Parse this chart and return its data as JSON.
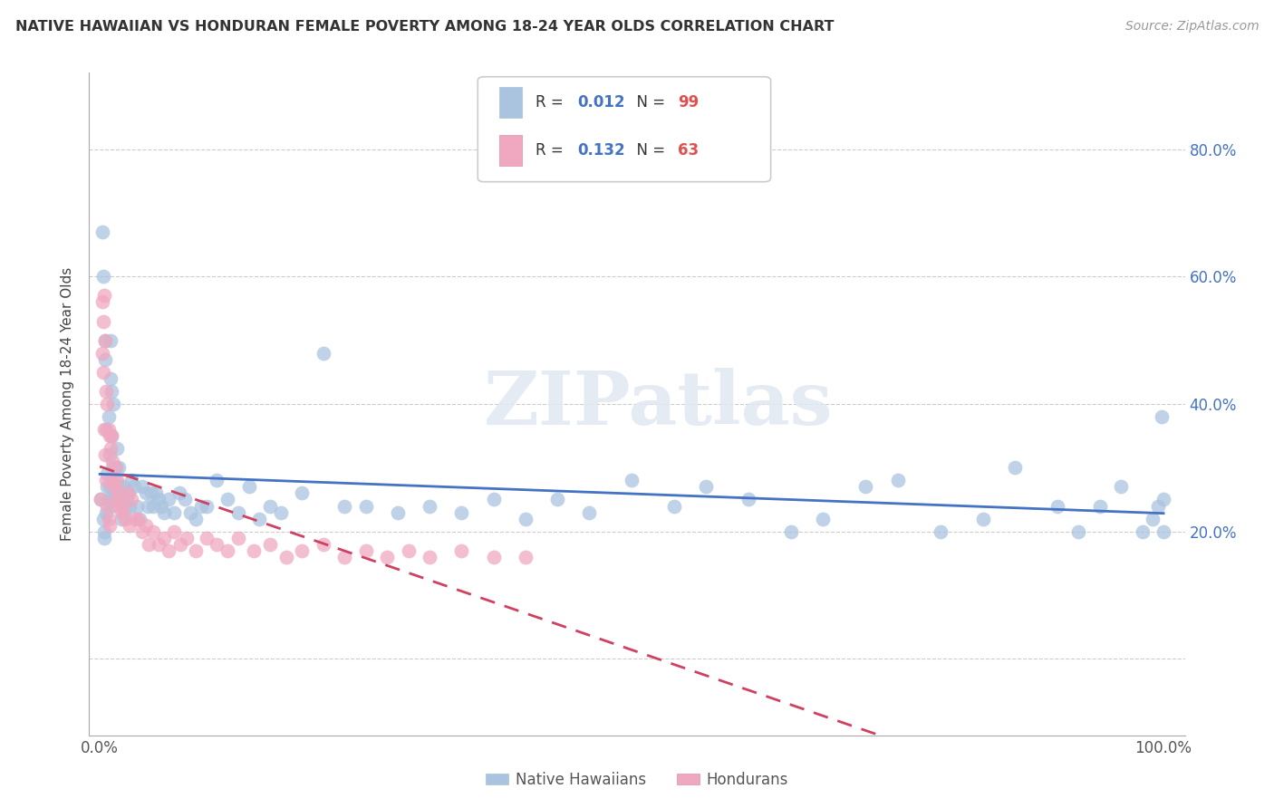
{
  "title": "NATIVE HAWAIIAN VS HONDURAN FEMALE POVERTY AMONG 18-24 YEAR OLDS CORRELATION CHART",
  "source": "Source: ZipAtlas.com",
  "ylabel": "Female Poverty Among 18-24 Year Olds",
  "xlim": [
    -0.01,
    1.02
  ],
  "ylim": [
    -0.12,
    0.92
  ],
  "ytick_positions": [
    0.0,
    0.2,
    0.4,
    0.6,
    0.8
  ],
  "ytick_labels": [
    "",
    "20.0%",
    "40.0%",
    "60.0%",
    "80.0%"
  ],
  "xtick_positions": [
    0.0,
    0.2,
    0.4,
    0.6,
    0.8,
    1.0
  ],
  "xtick_labels": [
    "0.0%",
    "",
    "",
    "",
    "",
    "100.0%"
  ],
  "grid_color": "#cccccc",
  "background_color": "#ffffff",
  "hawaiian_color": "#aac4e0",
  "honduran_color": "#f0a8c0",
  "trend_hawaiian_color": "#4472c4",
  "trend_honduran_color": "#d04060",
  "legend_r1_val": "0.012",
  "legend_n1_val": "99",
  "legend_r2_val": "0.132",
  "legend_n2_val": "63",
  "legend_label1": "Native Hawaiians",
  "legend_label2": "Hondurans",
  "watermark": "ZIPatlas",
  "val_color": "#4472c4",
  "n_color": "#e05050",
  "hawaiian_x": [
    0.001,
    0.002,
    0.003,
    0.003,
    0.004,
    0.004,
    0.005,
    0.005,
    0.006,
    0.006,
    0.007,
    0.007,
    0.008,
    0.008,
    0.009,
    0.009,
    0.01,
    0.01,
    0.01,
    0.011,
    0.011,
    0.012,
    0.012,
    0.013,
    0.013,
    0.014,
    0.015,
    0.015,
    0.016,
    0.017,
    0.018,
    0.019,
    0.02,
    0.021,
    0.022,
    0.023,
    0.025,
    0.027,
    0.028,
    0.03,
    0.032,
    0.035,
    0.037,
    0.04,
    0.043,
    0.045,
    0.048,
    0.05,
    0.053,
    0.055,
    0.058,
    0.06,
    0.065,
    0.07,
    0.075,
    0.08,
    0.085,
    0.09,
    0.095,
    0.1,
    0.11,
    0.12,
    0.13,
    0.14,
    0.15,
    0.16,
    0.17,
    0.19,
    0.21,
    0.23,
    0.25,
    0.28,
    0.31,
    0.34,
    0.37,
    0.4,
    0.43,
    0.46,
    0.5,
    0.54,
    0.57,
    0.61,
    0.65,
    0.68,
    0.72,
    0.75,
    0.79,
    0.83,
    0.86,
    0.9,
    0.92,
    0.94,
    0.96,
    0.98,
    0.99,
    0.995,
    0.998,
    1.0,
    1.0
  ],
  "hawaiian_y": [
    0.25,
    0.67,
    0.6,
    0.22,
    0.2,
    0.19,
    0.5,
    0.47,
    0.36,
    0.23,
    0.29,
    0.27,
    0.38,
    0.25,
    0.32,
    0.27,
    0.5,
    0.44,
    0.24,
    0.42,
    0.35,
    0.3,
    0.25,
    0.4,
    0.25,
    0.28,
    0.3,
    0.26,
    0.33,
    0.25,
    0.3,
    0.27,
    0.22,
    0.25,
    0.27,
    0.23,
    0.25,
    0.26,
    0.24,
    0.28,
    0.27,
    0.24,
    0.22,
    0.27,
    0.26,
    0.24,
    0.26,
    0.24,
    0.26,
    0.25,
    0.24,
    0.23,
    0.25,
    0.23,
    0.26,
    0.25,
    0.23,
    0.22,
    0.24,
    0.24,
    0.28,
    0.25,
    0.23,
    0.27,
    0.22,
    0.24,
    0.23,
    0.26,
    0.48,
    0.24,
    0.24,
    0.23,
    0.24,
    0.23,
    0.25,
    0.22,
    0.25,
    0.23,
    0.28,
    0.24,
    0.27,
    0.25,
    0.2,
    0.22,
    0.27,
    0.28,
    0.2,
    0.22,
    0.3,
    0.24,
    0.2,
    0.24,
    0.27,
    0.2,
    0.22,
    0.24,
    0.38,
    0.25,
    0.2
  ],
  "honduran_x": [
    0.001,
    0.002,
    0.002,
    0.003,
    0.003,
    0.004,
    0.004,
    0.005,
    0.005,
    0.006,
    0.006,
    0.007,
    0.007,
    0.008,
    0.008,
    0.009,
    0.009,
    0.01,
    0.011,
    0.011,
    0.012,
    0.013,
    0.014,
    0.015,
    0.016,
    0.017,
    0.018,
    0.02,
    0.022,
    0.024,
    0.026,
    0.028,
    0.03,
    0.033,
    0.036,
    0.04,
    0.043,
    0.046,
    0.05,
    0.055,
    0.06,
    0.065,
    0.07,
    0.076,
    0.082,
    0.09,
    0.1,
    0.11,
    0.12,
    0.13,
    0.145,
    0.16,
    0.175,
    0.19,
    0.21,
    0.23,
    0.25,
    0.27,
    0.29,
    0.31,
    0.34,
    0.37,
    0.4
  ],
  "honduran_y": [
    0.25,
    0.56,
    0.48,
    0.53,
    0.45,
    0.57,
    0.36,
    0.5,
    0.32,
    0.42,
    0.28,
    0.4,
    0.24,
    0.36,
    0.22,
    0.35,
    0.21,
    0.33,
    0.35,
    0.28,
    0.31,
    0.27,
    0.3,
    0.25,
    0.28,
    0.24,
    0.26,
    0.23,
    0.24,
    0.22,
    0.26,
    0.21,
    0.25,
    0.22,
    0.22,
    0.2,
    0.21,
    0.18,
    0.2,
    0.18,
    0.19,
    0.17,
    0.2,
    0.18,
    0.19,
    0.17,
    0.19,
    0.18,
    0.17,
    0.19,
    0.17,
    0.18,
    0.16,
    0.17,
    0.18,
    0.16,
    0.17,
    0.16,
    0.17,
    0.16,
    0.17,
    0.16,
    0.16
  ]
}
